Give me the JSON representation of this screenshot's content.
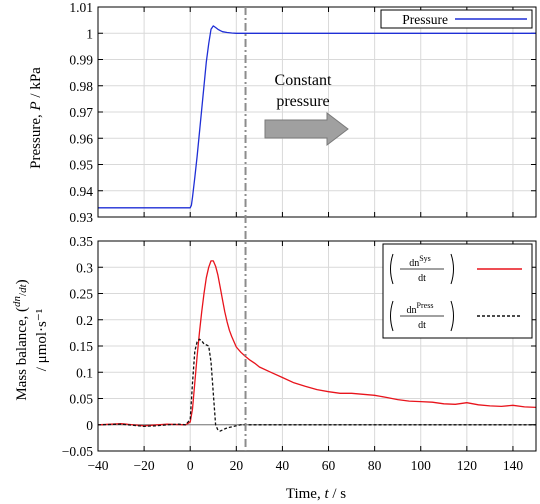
{
  "chart_data": [
    {
      "type": "line",
      "ylabel": "Pressure, P / kPa",
      "ylabel_parts": {
        "pre": "Pressure, ",
        "var": "P",
        "post": " / kPa"
      },
      "xlim": [
        -40,
        150
      ],
      "ylim": [
        0.93,
        1.01
      ],
      "yticks": [
        "0.93",
        "0.94",
        "0.95",
        "0.96",
        "0.97",
        "0.98",
        "0.99",
        "1",
        "1.01"
      ],
      "grid": true,
      "legend_position": "top-right",
      "annotation": {
        "lines": [
          "Constant",
          "pressure"
        ]
      },
      "marker_line_x": 24,
      "series": [
        {
          "name": "Pressure",
          "color": "#1f2fd6",
          "x": [
            -40,
            -20,
            0,
            0.5,
            1,
            2,
            3,
            4,
            5,
            6,
            7,
            8,
            9,
            10,
            11,
            12,
            13,
            14,
            16,
            18,
            20,
            22,
            25,
            30,
            40,
            60,
            80,
            100,
            120,
            140,
            150
          ],
          "y": [
            0.9335,
            0.9335,
            0.9335,
            0.9345,
            0.9375,
            0.945,
            0.953,
            0.962,
            0.971,
            0.98,
            0.989,
            0.996,
            1.0015,
            1.0028,
            1.0022,
            1.0015,
            1.001,
            1.0006,
            1.0003,
            1.0001,
            1.0,
            1.0,
            1.0,
            1.0,
            1.0,
            1.0,
            1.0,
            1.0,
            1.0,
            1.0,
            1.0
          ]
        }
      ]
    },
    {
      "type": "line",
      "xlabel": "Time, t / s",
      "xlabel_parts": {
        "pre": "Time, ",
        "var": "t",
        "post": " / s"
      },
      "ylabel_lines": [
        "Mass balance,",
        "/ μmol·s⁻¹"
      ],
      "xlim": [
        -40,
        150
      ],
      "ylim": [
        -0.05,
        0.35
      ],
      "xticks": [
        "−40",
        "−20",
        "0",
        "20",
        "40",
        "60",
        "80",
        "100",
        "120",
        "140"
      ],
      "yticks": [
        "−0.05",
        "0",
        "0.05",
        "0.1",
        "0.15",
        "0.2",
        "0.25",
        "0.3",
        "0.35"
      ],
      "grid": true,
      "legend_position": "top-right",
      "series": [
        {
          "name": "dn Sys / dt",
          "legend_parts": {
            "num": "dn",
            "sup": "Sys",
            "den": "dt"
          },
          "color": "#e8141c",
          "style": "solid",
          "x": [
            -40,
            -30,
            -20,
            -10,
            -2,
            0,
            1,
            2,
            3,
            4,
            5,
            6,
            7,
            8,
            9,
            10,
            11,
            12,
            13,
            14,
            15,
            16,
            17,
            18,
            19,
            20,
            22,
            24,
            26,
            28,
            30,
            35,
            40,
            45,
            50,
            55,
            60,
            65,
            70,
            75,
            80,
            85,
            90,
            95,
            100,
            105,
            110,
            115,
            120,
            125,
            130,
            135,
            140,
            145,
            150
          ],
          "y": [
            0.0,
            0.002,
            -0.002,
            0.001,
            0.0,
            0.005,
            0.03,
            0.08,
            0.13,
            0.175,
            0.215,
            0.25,
            0.28,
            0.3,
            0.312,
            0.312,
            0.302,
            0.285,
            0.262,
            0.238,
            0.215,
            0.196,
            0.18,
            0.168,
            0.158,
            0.148,
            0.138,
            0.13,
            0.123,
            0.117,
            0.11,
            0.1,
            0.09,
            0.08,
            0.073,
            0.067,
            0.063,
            0.06,
            0.06,
            0.058,
            0.056,
            0.052,
            0.048,
            0.045,
            0.044,
            0.043,
            0.04,
            0.039,
            0.042,
            0.038,
            0.036,
            0.035,
            0.037,
            0.034,
            0.033
          ]
        },
        {
          "name": "dn Press / dt",
          "legend_parts": {
            "num": "dn",
            "sup": "Press",
            "den": "dt"
          },
          "color": "#111111",
          "style": "dashed",
          "x": [
            -40,
            -30,
            -20,
            -15,
            -10,
            -5,
            -2,
            0,
            1,
            2,
            3,
            4,
            5,
            6,
            7,
            8,
            9,
            10,
            11,
            12,
            13,
            14,
            15,
            16,
            18,
            20,
            22,
            25,
            30,
            40,
            60,
            80,
            100,
            120,
            140,
            150
          ],
          "y": [
            0.0,
            0.001,
            -0.003,
            -0.002,
            0.0,
            0.001,
            0.0,
            0.01,
            0.08,
            0.14,
            0.158,
            0.163,
            0.16,
            0.154,
            0.152,
            0.15,
            0.12,
            0.06,
            0.0,
            -0.01,
            -0.012,
            -0.01,
            -0.008,
            -0.006,
            -0.004,
            -0.002,
            0.0,
            0.0,
            0.0,
            0.0,
            0.0,
            0.0,
            0.0,
            0.0,
            0.0,
            0.0
          ]
        }
      ]
    }
  ]
}
